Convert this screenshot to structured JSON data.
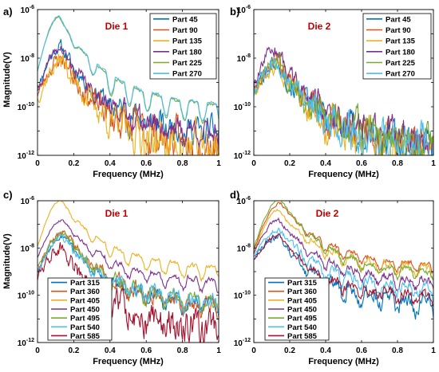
{
  "figure": {
    "ylabel": "Magnitude(V)",
    "colors": {
      "c1": "#0072BD",
      "c2": "#D95319",
      "c3": "#EDB120",
      "c4": "#7E2F8E",
      "c5": "#77AC30",
      "c6": "#4DBEEE",
      "c7": "#A2142F"
    }
  },
  "chart_data": [
    {
      "type": "line",
      "panel_label": "a)",
      "title": "Die 1",
      "xlabel": "Frequency (MHz)",
      "ylabel": "Magnitude(V)",
      "xlim": [
        0,
        1
      ],
      "ylim": [
        1e-12,
        1e-06
      ],
      "yscale": "log",
      "x_ticks": [
        "0",
        "0.2",
        "0.4",
        "0.6",
        "0.8",
        "1"
      ],
      "legend_position": "top-right",
      "series": [
        {
          "name": "Part 45",
          "color": "c1",
          "peak_x": 0.13,
          "peak": 3e-08,
          "start": 5e-10,
          "tail": 1e-11,
          "ripple": 0.5,
          "noise": 0.45,
          "seed": 11
        },
        {
          "name": "Part 90",
          "color": "c2",
          "peak_x": 0.14,
          "peak": 1e-08,
          "start": 3e-10,
          "tail": 3e-12,
          "ripple": 0.4,
          "noise": 0.65,
          "seed": 23
        },
        {
          "name": "Part 135",
          "color": "c3",
          "peak_x": 0.14,
          "peak": 8e-09,
          "start": 2e-10,
          "tail": 2e-12,
          "ripple": 0.4,
          "noise": 0.7,
          "seed": 37
        },
        {
          "name": "Part 180",
          "color": "c4",
          "peak_x": 0.13,
          "peak": 2.5e-08,
          "start": 4e-10,
          "tail": 1e-11,
          "ripple": 0.5,
          "noise": 0.4,
          "seed": 41
        },
        {
          "name": "Part 225",
          "color": "c5",
          "peak_x": 0.12,
          "peak": 5e-07,
          "start": 3e-09,
          "tail": 1.2e-10,
          "ripple": 1.3,
          "noise": 0.06,
          "seed": 53
        },
        {
          "name": "Part 270",
          "color": "c6",
          "peak_x": 0.12,
          "peak": 5.5e-07,
          "start": 3e-09,
          "tail": 1.3e-10,
          "ripple": 1.3,
          "noise": 0.06,
          "seed": 67
        }
      ]
    },
    {
      "type": "line",
      "panel_label": "b)",
      "title": "Die 2",
      "xlabel": "Frequency (MHz)",
      "ylabel": "",
      "xlim": [
        0,
        1
      ],
      "ylim": [
        1e-12,
        1e-06
      ],
      "yscale": "log",
      "x_ticks": [
        "0",
        "0.2",
        "0.4",
        "0.6",
        "0.8",
        "1"
      ],
      "legend_position": "top-right",
      "series": [
        {
          "name": "Part 45",
          "color": "c1",
          "peak_x": 0.13,
          "peak": 7e-09,
          "start": 4e-10,
          "tail": 3e-12,
          "ripple": 0.5,
          "noise": 0.65,
          "seed": 101
        },
        {
          "name": "Part 90",
          "color": "c2",
          "peak_x": 0.13,
          "peak": 8e-09,
          "start": 4e-10,
          "tail": 4e-12,
          "ripple": 0.5,
          "noise": 0.6,
          "seed": 113
        },
        {
          "name": "Part 135",
          "color": "c3",
          "peak_x": 0.13,
          "peak": 6e-09,
          "start": 3e-10,
          "tail": 2e-12,
          "ripple": 0.5,
          "noise": 0.7,
          "seed": 127
        },
        {
          "name": "Part 180",
          "color": "c4",
          "peak_x": 0.12,
          "peak": 2.5e-08,
          "start": 5e-10,
          "tail": 5e-12,
          "ripple": 0.5,
          "noise": 0.55,
          "seed": 139
        },
        {
          "name": "Part 225",
          "color": "c5",
          "peak_x": 0.13,
          "peak": 6e-09,
          "start": 4e-10,
          "tail": 3e-12,
          "ripple": 0.5,
          "noise": 0.65,
          "seed": 151
        },
        {
          "name": "Part 270",
          "color": "c6",
          "peak_x": 0.13,
          "peak": 7e-09,
          "start": 4e-10,
          "tail": 3e-12,
          "ripple": 0.5,
          "noise": 0.65,
          "seed": 163
        }
      ]
    },
    {
      "type": "line",
      "panel_label": "c)",
      "title": "Die 1",
      "xlabel": "Frequency (MHz)",
      "ylabel": "Magnitude(V)",
      "xlim": [
        0,
        1
      ],
      "ylim": [
        1e-12,
        1e-06
      ],
      "yscale": "log",
      "x_ticks": [
        "0",
        "0.2",
        "0.4",
        "0.6",
        "0.8",
        "1"
      ],
      "legend_position": "bottom-left",
      "series": [
        {
          "name": "Part 315",
          "color": "c1",
          "peak_x": 0.15,
          "peak": 3e-08,
          "start": 1e-09,
          "tail": 5e-11,
          "ripple": 0.8,
          "noise": 0.25,
          "seed": 211
        },
        {
          "name": "Part 360",
          "color": "c2",
          "peak_x": 0.15,
          "peak": 5e-08,
          "start": 1e-09,
          "tail": 5e-11,
          "ripple": 0.6,
          "noise": 0.3,
          "seed": 223
        },
        {
          "name": "Part 405",
          "color": "c3",
          "peak_x": 0.13,
          "peak": 1e-06,
          "start": 1.2e-08,
          "tail": 1.5e-09,
          "ripple": 0.9,
          "noise": 0.08,
          "seed": 229
        },
        {
          "name": "Part 450",
          "color": "c4",
          "peak_x": 0.14,
          "peak": 1.5e-07,
          "start": 4e-09,
          "tail": 4e-10,
          "ripple": 0.8,
          "noise": 0.1,
          "seed": 233
        },
        {
          "name": "Part 495",
          "color": "c5",
          "peak_x": 0.15,
          "peak": 4e-08,
          "start": 1.5e-09,
          "tail": 6e-11,
          "ripple": 0.7,
          "noise": 0.25,
          "seed": 239
        },
        {
          "name": "Part 540",
          "color": "c6",
          "peak_x": 0.14,
          "peak": 3e-08,
          "start": 1e-09,
          "tail": 6e-11,
          "ripple": 0.7,
          "noise": 0.25,
          "seed": 241
        },
        {
          "name": "Part 585",
          "color": "c7",
          "peak_x": 0.14,
          "peak": 1e-08,
          "start": 6e-10,
          "tail": 4e-12,
          "ripple": 0.6,
          "noise": 0.55,
          "seed": 251
        }
      ]
    },
    {
      "type": "line",
      "panel_label": "d)",
      "title": "Die 2",
      "xlabel": "Frequency (MHz)",
      "ylabel": "",
      "xlim": [
        0,
        1
      ],
      "ylim": [
        1e-12,
        1e-06
      ],
      "yscale": "log",
      "x_ticks": [
        "0",
        "0.2",
        "0.4",
        "0.6",
        "0.8",
        "1"
      ],
      "legend_position": "bottom-left",
      "series": [
        {
          "name": "Part 315",
          "color": "c1",
          "peak_x": 0.14,
          "peak": 3e-08,
          "start": 4e-09,
          "tail": 6e-11,
          "ripple": 0.9,
          "noise": 0.25,
          "seed": 307
        },
        {
          "name": "Part 360",
          "color": "c2",
          "peak_x": 0.15,
          "peak": 8e-07,
          "start": 8e-09,
          "tail": 2e-09,
          "ripple": 0.6,
          "noise": 0.1,
          "seed": 311
        },
        {
          "name": "Part 405",
          "color": "c3",
          "peak_x": 0.14,
          "peak": 4e-07,
          "start": 6e-09,
          "tail": 1.5e-09,
          "ripple": 0.7,
          "noise": 0.12,
          "seed": 313
        },
        {
          "name": "Part 450",
          "color": "c4",
          "peak_x": 0.14,
          "peak": 1.5e-07,
          "start": 6e-09,
          "tail": 4e-10,
          "ripple": 0.6,
          "noise": 0.15,
          "seed": 317
        },
        {
          "name": "Part 495",
          "color": "c5",
          "peak_x": 0.15,
          "peak": 1.2e-06,
          "start": 1e-08,
          "tail": 1e-09,
          "ripple": 0.6,
          "noise": 0.1,
          "seed": 331
        },
        {
          "name": "Part 540",
          "color": "c6",
          "peak_x": 0.14,
          "peak": 6e-08,
          "start": 4e-09,
          "tail": 2e-10,
          "ripple": 0.7,
          "noise": 0.2,
          "seed": 337
        },
        {
          "name": "Part 585",
          "color": "c7",
          "peak_x": 0.14,
          "peak": 3e-08,
          "start": 3e-09,
          "tail": 1e-10,
          "ripple": 0.7,
          "noise": 0.2,
          "seed": 347
        }
      ]
    }
  ]
}
